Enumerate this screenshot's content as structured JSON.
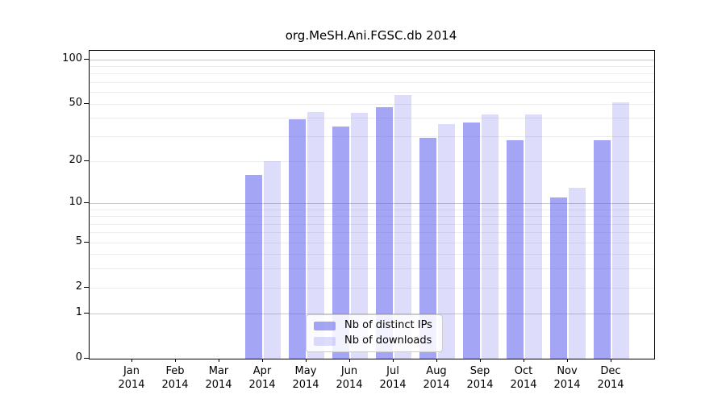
{
  "title": "org.MeSH.Ani.FGSC.db 2014",
  "chart_data": {
    "type": "bar",
    "title": "org.MeSH.Ani.FGSC.db 2014",
    "categories": [
      "Jan 2014",
      "Feb 2014",
      "Mar 2014",
      "Apr 2014",
      "May 2014",
      "Jun 2014",
      "Jul 2014",
      "Aug 2014",
      "Sep 2014",
      "Oct 2014",
      "Nov 2014",
      "Dec 2014"
    ],
    "series": [
      {
        "name": "Nb of distinct IPs",
        "color": "rgba(100,100,238,0.58)",
        "values": [
          0,
          0,
          0,
          16,
          39,
          35,
          47,
          29,
          37,
          28,
          11,
          28
        ]
      },
      {
        "name": "Nb of downloads",
        "color": "rgba(100,100,238,0.22)",
        "values": [
          0,
          0,
          0,
          20,
          44,
          43,
          57,
          36,
          42,
          42,
          13,
          51
        ]
      }
    ],
    "xlabel": "",
    "ylabel": "",
    "yscale": "log10(value+1)",
    "ylim": [
      0,
      114
    ],
    "ytick_labels": [
      100,
      50,
      20,
      10,
      5,
      2,
      1,
      0
    ],
    "major_gridlines": [
      1,
      10,
      100
    ],
    "minor_gridlines": [
      2,
      3,
      4,
      5,
      6,
      7,
      8,
      9,
      20,
      30,
      40,
      50,
      60,
      70,
      80,
      90
    ],
    "grid": true,
    "legend_position": "inside-bottom-center",
    "bar_color_dark_on_white": "#a5a5f5",
    "bar_color_light_on_white": "#ddddfb"
  }
}
